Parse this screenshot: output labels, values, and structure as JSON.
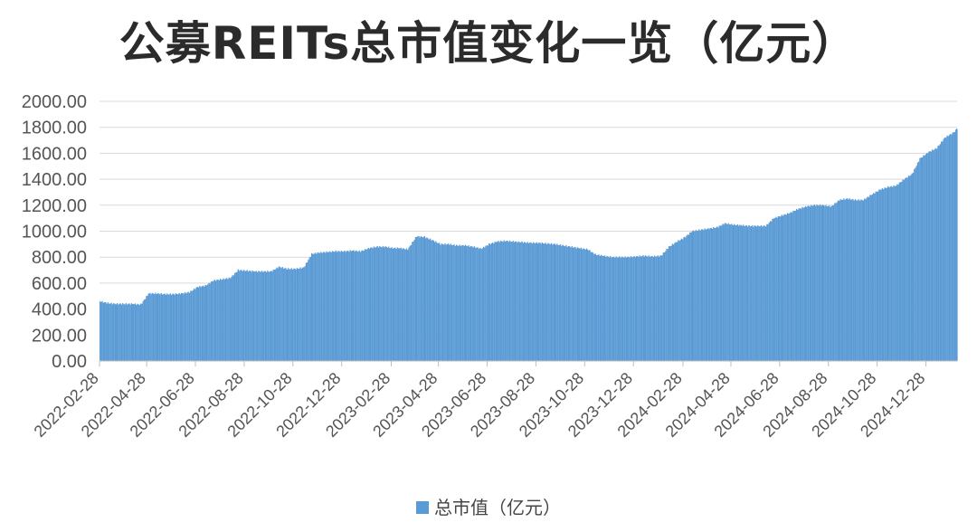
{
  "chart_data": {
    "type": "bar",
    "title": "公募REITs总市值变化一览（亿元）",
    "ylim": [
      0,
      2000
    ],
    "yticks": [
      "0.00",
      "200.00",
      "400.00",
      "600.00",
      "800.00",
      "1000.00",
      "1200.00",
      "1400.00",
      "1600.00",
      "1800.00",
      "2000.00"
    ],
    "ytick_values": [
      0,
      200,
      400,
      600,
      800,
      1000,
      1200,
      1400,
      1600,
      1800,
      2000
    ],
    "xticks": [
      "2022-02-28",
      "2022-04-28",
      "2022-06-28",
      "2022-08-28",
      "2022-10-28",
      "2022-12-28",
      "2023-02-28",
      "2023-04-28",
      "2023-06-28",
      "2023-08-28",
      "2023-10-28",
      "2023-12-28",
      "2024-02-28",
      "2024-04-28",
      "2024-06-28",
      "2024-08-28",
      "2024-10-28",
      "2024-12-28"
    ],
    "x_range": [
      "2022-02-28",
      "2025-02-05"
    ],
    "grid": "horizontal",
    "legend_position": "bottom",
    "color": "#5b9bd5",
    "series": [
      {
        "name": "总市值（亿元）",
        "points": [
          [
            "2022-02-28",
            460
          ],
          [
            "2022-03-10",
            445
          ],
          [
            "2022-03-20",
            440
          ],
          [
            "2022-03-31",
            440
          ],
          [
            "2022-04-10",
            440
          ],
          [
            "2022-04-20",
            435
          ],
          [
            "2022-04-30",
            520
          ],
          [
            "2022-05-10",
            520
          ],
          [
            "2022-05-20",
            515
          ],
          [
            "2022-05-31",
            515
          ],
          [
            "2022-06-10",
            520
          ],
          [
            "2022-06-20",
            530
          ],
          [
            "2022-06-30",
            570
          ],
          [
            "2022-07-10",
            580
          ],
          [
            "2022-07-20",
            620
          ],
          [
            "2022-07-31",
            630
          ],
          [
            "2022-08-10",
            640
          ],
          [
            "2022-08-20",
            700
          ],
          [
            "2022-08-31",
            695
          ],
          [
            "2022-09-10",
            690
          ],
          [
            "2022-09-20",
            690
          ],
          [
            "2022-09-30",
            690
          ],
          [
            "2022-10-10",
            725
          ],
          [
            "2022-10-20",
            710
          ],
          [
            "2022-10-31",
            710
          ],
          [
            "2022-11-10",
            720
          ],
          [
            "2022-11-20",
            825
          ],
          [
            "2022-11-30",
            835
          ],
          [
            "2022-12-10",
            840
          ],
          [
            "2022-12-20",
            845
          ],
          [
            "2022-12-31",
            845
          ],
          [
            "2023-01-10",
            850
          ],
          [
            "2023-01-20",
            845
          ],
          [
            "2023-01-31",
            870
          ],
          [
            "2023-02-10",
            880
          ],
          [
            "2023-02-20",
            880
          ],
          [
            "2023-02-28",
            870
          ],
          [
            "2023-03-10",
            870
          ],
          [
            "2023-03-20",
            860
          ],
          [
            "2023-03-31",
            960
          ],
          [
            "2023-04-10",
            955
          ],
          [
            "2023-04-20",
            930
          ],
          [
            "2023-04-30",
            900
          ],
          [
            "2023-05-10",
            900
          ],
          [
            "2023-05-20",
            890
          ],
          [
            "2023-05-31",
            890
          ],
          [
            "2023-06-10",
            880
          ],
          [
            "2023-06-20",
            865
          ],
          [
            "2023-06-30",
            900
          ],
          [
            "2023-07-10",
            920
          ],
          [
            "2023-07-20",
            925
          ],
          [
            "2023-07-31",
            920
          ],
          [
            "2023-08-10",
            915
          ],
          [
            "2023-08-20",
            910
          ],
          [
            "2023-08-31",
            910
          ],
          [
            "2023-09-10",
            905
          ],
          [
            "2023-09-20",
            900
          ],
          [
            "2023-09-30",
            890
          ],
          [
            "2023-10-10",
            880
          ],
          [
            "2023-10-20",
            870
          ],
          [
            "2023-10-31",
            860
          ],
          [
            "2023-11-10",
            820
          ],
          [
            "2023-11-20",
            810
          ],
          [
            "2023-11-30",
            800
          ],
          [
            "2023-12-10",
            800
          ],
          [
            "2023-12-20",
            800
          ],
          [
            "2023-12-31",
            805
          ],
          [
            "2024-01-10",
            810
          ],
          [
            "2024-01-20",
            805
          ],
          [
            "2024-01-31",
            810
          ],
          [
            "2024-02-10",
            880
          ],
          [
            "2024-02-20",
            920
          ],
          [
            "2024-02-29",
            950
          ],
          [
            "2024-03-10",
            1000
          ],
          [
            "2024-03-20",
            1010
          ],
          [
            "2024-03-31",
            1020
          ],
          [
            "2024-04-10",
            1030
          ],
          [
            "2024-04-20",
            1060
          ],
          [
            "2024-04-30",
            1050
          ],
          [
            "2024-05-10",
            1045
          ],
          [
            "2024-05-20",
            1040
          ],
          [
            "2024-05-31",
            1040
          ],
          [
            "2024-06-10",
            1040
          ],
          [
            "2024-06-20",
            1100
          ],
          [
            "2024-06-30",
            1120
          ],
          [
            "2024-07-10",
            1140
          ],
          [
            "2024-07-20",
            1170
          ],
          [
            "2024-07-31",
            1190
          ],
          [
            "2024-08-10",
            1200
          ],
          [
            "2024-08-20",
            1200
          ],
          [
            "2024-08-31",
            1190
          ],
          [
            "2024-09-10",
            1240
          ],
          [
            "2024-09-20",
            1250
          ],
          [
            "2024-09-30",
            1240
          ],
          [
            "2024-10-10",
            1240
          ],
          [
            "2024-10-20",
            1280
          ],
          [
            "2024-10-31",
            1320
          ],
          [
            "2024-11-10",
            1340
          ],
          [
            "2024-11-20",
            1350
          ],
          [
            "2024-11-30",
            1400
          ],
          [
            "2024-12-10",
            1440
          ],
          [
            "2024-12-20",
            1560
          ],
          [
            "2024-12-31",
            1610
          ],
          [
            "2025-01-10",
            1640
          ],
          [
            "2025-01-20",
            1720
          ],
          [
            "2025-01-31",
            1760
          ],
          [
            "2025-02-05",
            1790
          ]
        ]
      }
    ]
  }
}
